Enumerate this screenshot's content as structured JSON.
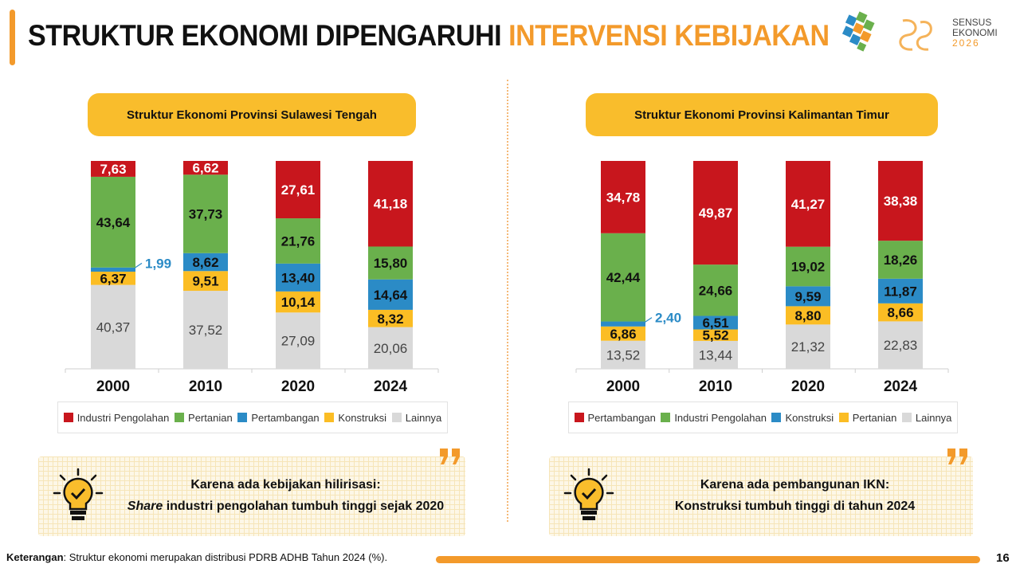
{
  "header": {
    "title_part1": "STRUKTUR EKONOMI DIPENGARUHI",
    "title_part2": "INTERVENSI KEBIJAKAN",
    "logo_text": [
      "SENSUS",
      "EKONOMI",
      "2026"
    ]
  },
  "colors": {
    "accent": "#f39a2b",
    "pill": "#f9bd2c",
    "series": [
      "#c8161d",
      "#6ab04c",
      "#2b8bc6",
      "#fbbd24",
      "#d9d9d9"
    ]
  },
  "chart_data": [
    {
      "type": "bar",
      "stacked": true,
      "title": "Struktur Ekonomi Provinsi Sulawesi Tengah",
      "categories": [
        "2000",
        "2010",
        "2020",
        "2024"
      ],
      "series": [
        {
          "name": "Lainnya",
          "values": [
            40.37,
            37.52,
            27.09,
            20.06
          ]
        },
        {
          "name": "Konstruksi",
          "values": [
            6.37,
            9.51,
            10.14,
            8.32
          ]
        },
        {
          "name": "Pertambangan",
          "values": [
            1.99,
            8.62,
            13.4,
            14.64
          ]
        },
        {
          "name": "Pertanian",
          "values": [
            43.64,
            37.73,
            21.76,
            15.8
          ]
        },
        {
          "name": "Industri Pengolahan",
          "values": [
            7.63,
            6.62,
            27.61,
            41.18
          ]
        }
      ],
      "labels": [
        [
          "40,37",
          "37,52",
          "27,09",
          "20,06"
        ],
        [
          "6,37",
          "9,51",
          "10,14",
          "8,32"
        ],
        [
          "1,99",
          "8,62",
          "13,40",
          "14,64"
        ],
        [
          "43,64",
          "37,73",
          "21,76",
          "15,80"
        ],
        [
          "7,63",
          "6,62",
          "27,61",
          "41,18"
        ]
      ],
      "legend": [
        "Industri Pengolahan",
        "Pertanian",
        "Pertambangan",
        "Konstruksi",
        "Lainnya"
      ],
      "ylim": [
        0,
        100
      ],
      "grid": false
    },
    {
      "type": "bar",
      "stacked": true,
      "title": "Struktur Ekonomi Provinsi Kalimantan Timur",
      "categories": [
        "2000",
        "2010",
        "2020",
        "2024"
      ],
      "series": [
        {
          "name": "Lainnya",
          "values": [
            13.52,
            13.44,
            21.32,
            22.83
          ]
        },
        {
          "name": "Pertanian",
          "values": [
            6.86,
            5.52,
            8.8,
            8.66
          ]
        },
        {
          "name": "Konstruksi",
          "values": [
            2.4,
            6.51,
            9.59,
            11.87
          ]
        },
        {
          "name": "Industri Pengolahan",
          "values": [
            42.44,
            24.66,
            19.02,
            18.26
          ]
        },
        {
          "name": "Pertambangan",
          "values": [
            34.78,
            49.87,
            41.27,
            38.38
          ]
        }
      ],
      "labels": [
        [
          "13,52",
          "13,44",
          "21,32",
          "22,83"
        ],
        [
          "6,86",
          "5,52",
          "8,80",
          "8,66"
        ],
        [
          "2,40",
          "6,51",
          "9,59",
          "11,87"
        ],
        [
          "42,44",
          "24,66",
          "19,02",
          "18,26"
        ],
        [
          "34,78",
          "49,87",
          "41,27",
          "38,38"
        ]
      ],
      "legend": [
        "Pertambangan",
        "Industri Pengolahan",
        "Konstruksi",
        "Pertanian",
        "Lainnya"
      ],
      "ylim": [
        0,
        100
      ],
      "grid": false
    }
  ],
  "series_colors": [
    {
      "Lainnya": "#d9d9d9",
      "Konstruksi": "#fbbd24",
      "Pertambangan": "#2b8bc6",
      "Pertanian": "#6ab04c",
      "Industri Pengolahan": "#c8161d"
    },
    {
      "Lainnya": "#d9d9d9",
      "Pertanian": "#fbbd24",
      "Konstruksi": "#2b8bc6",
      "Industri Pengolahan": "#6ab04c",
      "Pertambangan": "#c8161d"
    }
  ],
  "notes": [
    {
      "line1": "Karena ada kebijakan hilirisasi:",
      "line2_em": "Share",
      "line2_rest": " industri pengolahan tumbuh tinggi sejak 2020"
    },
    {
      "line1": "Karena ada pembangunan IKN:",
      "line2_em": "",
      "line2_rest": "Konstruksi tumbuh tinggi di tahun 2024"
    }
  ],
  "footer": {
    "label": "Keterangan",
    "text": ": Struktur ekonomi merupakan distribusi PDRB ADHB Tahun 2024 (%).",
    "page": "16"
  }
}
